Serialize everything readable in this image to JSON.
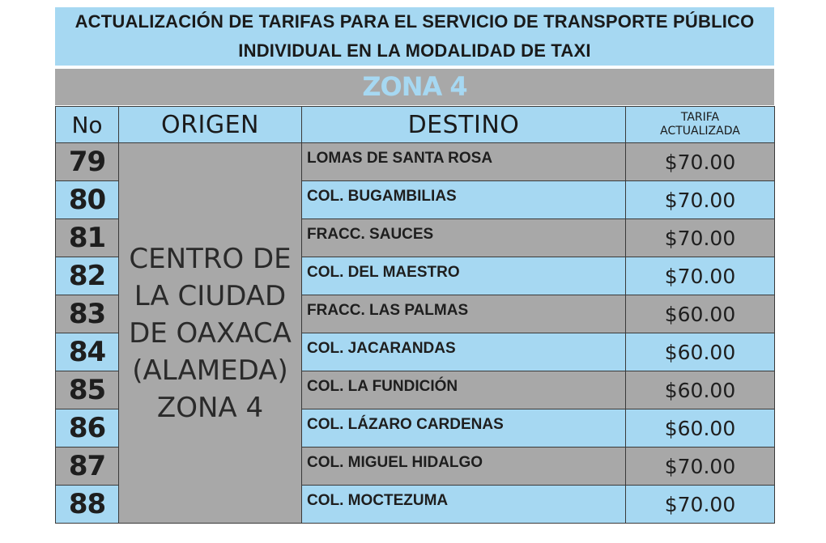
{
  "title": {
    "line1": "ACTUALIZACIÓN DE TARIFAS PARA EL SERVICIO DE TRANSPORTE PÚBLICO",
    "line2": "INDIVIDUAL EN LA MODALIDAD DE TAXI"
  },
  "zone": "ZONA 4",
  "headers": {
    "no": "No",
    "origen": "ORIGEN",
    "destino": "DESTINO",
    "tarifa_line1": "TARIFA",
    "tarifa_line2": "ACTUALIZADA"
  },
  "origin": {
    "lines": [
      "CENTRO DE",
      "LA CIUDAD",
      "DE OAXACA",
      "(ALAMEDA)",
      "ZONA 4"
    ]
  },
  "rows": [
    {
      "no": "79",
      "destino": "LOMAS DE SANTA ROSA",
      "tarifa": "$70.00"
    },
    {
      "no": "80",
      "destino": "COL. BUGAMBILIAS",
      "tarifa": "$70.00"
    },
    {
      "no": "81",
      "destino": "FRACC. SAUCES",
      "tarifa": "$70.00"
    },
    {
      "no": "82",
      "destino": "COL. DEL MAESTRO",
      "tarifa": "$70.00"
    },
    {
      "no": "83",
      "destino": "FRACC. LAS PALMAS",
      "tarifa": "$60.00"
    },
    {
      "no": "84",
      "destino": "COL. JACARANDAS",
      "tarifa": "$60.00"
    },
    {
      "no": "85",
      "destino": "COL. LA FUNDICIÓN",
      "tarifa": "$60.00"
    },
    {
      "no": "86",
      "destino": "COL. LÁZARO CARDENAS",
      "tarifa": "$60.00"
    },
    {
      "no": "87",
      "destino": "COL. MIGUEL HIDALGO",
      "tarifa": "$70.00"
    },
    {
      "no": "88",
      "destino": "COL. MOCTEZUMA",
      "tarifa": "$70.00"
    }
  ],
  "colors": {
    "light_blue": "#a6d8f2",
    "gray": "#a8a8a8"
  }
}
